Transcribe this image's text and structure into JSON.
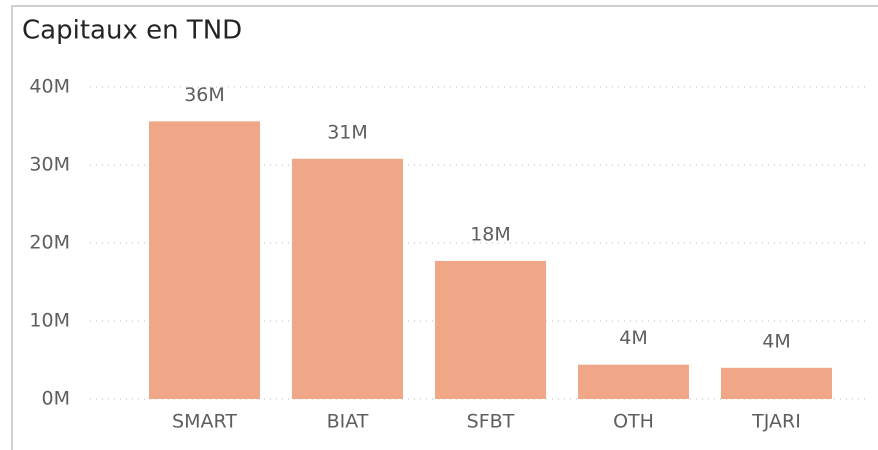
{
  "chart_data": {
    "type": "bar",
    "title": "Capitaux en TND",
    "categories": [
      "SMART",
      "BIAT",
      "SFBT",
      "OTH",
      "TJARI"
    ],
    "values": [
      35600000,
      30800000,
      17700000,
      4400000,
      4000000
    ],
    "value_labels": [
      "36M",
      "31M",
      "18M",
      "4M",
      "4M"
    ],
    "color": "#f0a787",
    "ylim": [
      0,
      40000000
    ],
    "yticks": [
      {
        "value": 0,
        "label": "0M"
      },
      {
        "value": 10000000,
        "label": "10M"
      },
      {
        "value": 20000000,
        "label": "20M"
      },
      {
        "value": 30000000,
        "label": "30M"
      },
      {
        "value": 40000000,
        "label": "40M"
      }
    ],
    "grid": true
  }
}
